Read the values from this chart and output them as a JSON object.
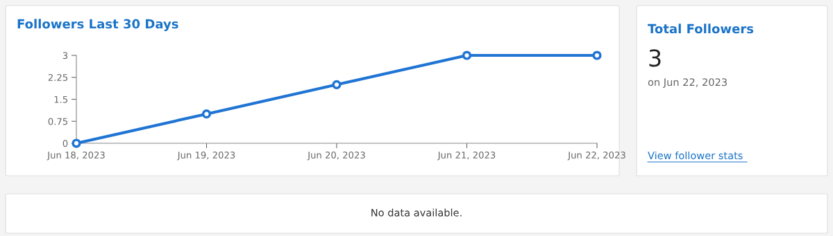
{
  "chart_data": [
    {
      "type": "line",
      "title": "Followers Last 30 Days",
      "categories": [
        "Jun 18, 2023",
        "Jun 19, 2023",
        "Jun 20, 2023",
        "Jun 21, 2023",
        "Jun 22, 2023"
      ],
      "series": [
        {
          "color": "#1f74d4",
          "values": [
            0,
            1,
            2,
            3,
            3
          ]
        }
      ],
      "ylim": [
        0,
        3
      ],
      "yticks": [
        0,
        0.75,
        1.5,
        2.25,
        3
      ],
      "grid": false,
      "legend": false,
      "marker": "circle",
      "line_style": "solid"
    },
    {
      "type": "other",
      "title": "Total Followers",
      "annotations": [
        "3",
        "on Jun 22, 2023",
        "View follower stats"
      ]
    },
    {
      "type": "other",
      "annotations": [
        "No data available."
      ]
    }
  ]
}
